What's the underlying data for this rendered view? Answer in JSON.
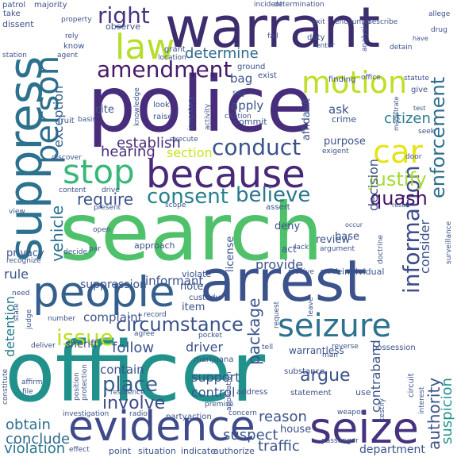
{
  "words": [
    {
      "text": "search",
      "color": "#4fc16b"
    },
    {
      "text": "officer",
      "color": "#21918c"
    },
    {
      "text": "police",
      "color": "#472d7b"
    },
    {
      "text": "warrant",
      "color": "#3e2d6e"
    },
    {
      "text": "arrest",
      "color": "#3b528b"
    },
    {
      "text": "because",
      "color": "#482878"
    },
    {
      "text": "suppress",
      "color": "#2c728e"
    },
    {
      "text": "people",
      "color": "#35608d"
    },
    {
      "text": "evidence",
      "color": "#3f4a8a"
    },
    {
      "text": "seizure",
      "color": "#2c728e"
    },
    {
      "text": "seize",
      "color": "#46327e"
    },
    {
      "text": "person",
      "color": "#2e6f8e"
    },
    {
      "text": "motion",
      "color": "#bddf26"
    },
    {
      "text": "law",
      "color": "#b5de2b"
    },
    {
      "text": "stop",
      "color": "#37b878"
    },
    {
      "text": "car",
      "color": "#e5e419"
    },
    {
      "text": "conduct",
      "color": "#3b528b"
    },
    {
      "text": "amendment",
      "color": "#481a6c"
    },
    {
      "text": "right",
      "color": "#463480"
    },
    {
      "text": "consent",
      "color": "#277f8e"
    },
    {
      "text": "believe",
      "color": "#2a788e"
    },
    {
      "text": "information",
      "color": "#3e4c8a"
    },
    {
      "text": "enforcement",
      "color": "#2e6e8e"
    },
    {
      "text": "justify",
      "color": "#a5db36"
    },
    {
      "text": "quash",
      "color": "#471365"
    },
    {
      "text": "circumstance",
      "color": "#3b528b"
    },
    {
      "text": "issue",
      "color": "#bddf26"
    },
    {
      "text": "place",
      "color": "#35608d"
    },
    {
      "text": "involve",
      "color": "#3e4989"
    },
    {
      "text": "obtain",
      "color": "#2d708e"
    },
    {
      "text": "conclude",
      "color": "#31688e"
    },
    {
      "text": "violation",
      "color": "#2a788e"
    },
    {
      "text": "vehicle",
      "color": "#2c728e"
    },
    {
      "text": "require",
      "color": "#3b528b"
    },
    {
      "text": "determine",
      "color": "#30698e"
    },
    {
      "text": "establish",
      "color": "#472d7b"
    },
    {
      "text": "hearing",
      "color": "#472d7b"
    },
    {
      "text": "section",
      "color": "#cde11d"
    },
    {
      "text": "exception",
      "color": "#34608d"
    },
    {
      "text": "package",
      "color": "#3b528b"
    },
    {
      "text": "authority",
      "color": "#3b528b"
    },
    {
      "text": "contraband",
      "color": "#3b528b"
    },
    {
      "text": "suspicion",
      "color": "#21918c"
    },
    {
      "text": "detention",
      "color": "#287c8e"
    },
    {
      "text": "citizen",
      "color": "#287d8e"
    },
    {
      "text": "consider",
      "color": "#3a548c"
    },
    {
      "text": "decision",
      "color": "#3b528b"
    },
    {
      "text": "argue",
      "color": "#3b528b"
    },
    {
      "text": "reason",
      "color": "#3b528b"
    },
    {
      "text": "suspect",
      "color": "#3b528b"
    },
    {
      "text": "traffic",
      "color": "#3b528b"
    },
    {
      "text": "house",
      "color": "#3b528b"
    },
    {
      "text": "department",
      "color": "#3b528b"
    },
    {
      "text": "provide",
      "color": "#3b528b"
    },
    {
      "text": "informant",
      "color": "#3b528b"
    },
    {
      "text": "suppression",
      "color": "#3b528b"
    },
    {
      "text": "complaint",
      "color": "#3b528b"
    },
    {
      "text": "follow",
      "color": "#3b528b"
    },
    {
      "text": "driver",
      "color": "#3b528b"
    },
    {
      "text": "contain",
      "color": "#3b528b"
    },
    {
      "text": "support",
      "color": "#3b528b"
    },
    {
      "text": "control",
      "color": "#3b528b"
    },
    {
      "text": "rule",
      "color": "#3b528b"
    },
    {
      "text": "privacy",
      "color": "#3b528b"
    },
    {
      "text": "sheriff",
      "color": "#3b528b"
    },
    {
      "text": "item",
      "color": "#3b528b"
    },
    {
      "text": "note",
      "color": "#3b528b"
    },
    {
      "text": "apply",
      "color": "#3b528b"
    },
    {
      "text": "bag",
      "color": "#3b528b"
    },
    {
      "text": "ask",
      "color": "#3b528b"
    },
    {
      "text": "deny",
      "color": "#3b528b"
    },
    {
      "text": "base",
      "color": "#3b528b"
    },
    {
      "text": "review",
      "color": "#3b528b"
    },
    {
      "text": "purpose",
      "color": "#3b528b"
    },
    {
      "text": "affidavit",
      "color": "#3b528b"
    },
    {
      "text": "license",
      "color": "#3b528b"
    },
    {
      "text": "act",
      "color": "#3b528b"
    },
    {
      "text": "observe",
      "color": "#3b528b"
    },
    {
      "text": "cite",
      "color": "#3b528b"
    },
    {
      "text": "commit",
      "color": "#3b528b"
    },
    {
      "text": "crime",
      "color": "#3b528b"
    },
    {
      "text": "exist",
      "color": "#3b528b"
    },
    {
      "text": "finding",
      "color": "#3b528b"
    },
    {
      "text": "ground",
      "color": "#3b528b"
    },
    {
      "text": "say",
      "color": "#3b528b"
    },
    {
      "text": "grant",
      "color": "#3b528b"
    },
    {
      "text": "lack",
      "color": "#3b528b"
    },
    {
      "text": "marijuana",
      "color": "#3b528b"
    },
    {
      "text": "custody",
      "color": "#3b528b"
    },
    {
      "text": "violate",
      "color": "#3b528b"
    },
    {
      "text": "approach",
      "color": "#3b528b"
    },
    {
      "text": "patrol",
      "color": "#3b528b"
    },
    {
      "text": "majority",
      "color": "#3b528b"
    },
    {
      "text": "dissent",
      "color": "#3b528b"
    },
    {
      "text": "take",
      "color": "#3b528b"
    },
    {
      "text": "property",
      "color": "#3b528b"
    },
    {
      "text": "rely",
      "color": "#3b528b"
    },
    {
      "text": "know",
      "color": "#3b528b"
    },
    {
      "text": "agent",
      "color": "#3b528b"
    },
    {
      "text": "station",
      "color": "#3b528b"
    },
    {
      "text": "determination",
      "color": "#3b528b"
    },
    {
      "text": "citation",
      "color": "#3b528b"
    },
    {
      "text": "incident",
      "color": "#3b528b"
    },
    {
      "text": "encounter",
      "color": "#3b528b"
    },
    {
      "text": "describe",
      "color": "#3b528b"
    },
    {
      "text": "allege",
      "color": "#3b528b"
    },
    {
      "text": "drug",
      "color": "#3b528b"
    },
    {
      "text": "have",
      "color": "#3b528b"
    },
    {
      "text": "exit",
      "color": "#3b528b"
    },
    {
      "text": "fail",
      "color": "#3b528b"
    },
    {
      "text": "duty",
      "color": "#3b528b"
    },
    {
      "text": "enter",
      "color": "#3b528b"
    },
    {
      "text": "analysis",
      "color": "#3b528b"
    },
    {
      "text": "detain",
      "color": "#3b528b"
    },
    {
      "text": "statute",
      "color": "#3b528b"
    },
    {
      "text": "give",
      "color": "#3b528b"
    },
    {
      "text": "office",
      "color": "#3b528b"
    },
    {
      "text": "test",
      "color": "#3b528b"
    },
    {
      "text": "magistrate",
      "color": "#3b528b"
    },
    {
      "text": "seek",
      "color": "#3b528b"
    },
    {
      "text": "door",
      "color": "#3b528b"
    },
    {
      "text": "exigent",
      "color": "#3b528b"
    },
    {
      "text": "result",
      "color": "#3b528b"
    },
    {
      "text": "occur",
      "color": "#3b528b"
    },
    {
      "text": "argument",
      "color": "#3b528b"
    },
    {
      "text": "doctrine",
      "color": "#3b528b"
    },
    {
      "text": "individual",
      "color": "#3b528b"
    },
    {
      "text": "article",
      "color": "#3b528b"
    },
    {
      "text": "receive",
      "color": "#3b528b"
    },
    {
      "text": "surveillance",
      "color": "#3b528b"
    },
    {
      "text": "request",
      "color": "#3b528b"
    },
    {
      "text": "leave",
      "color": "#3b528b"
    },
    {
      "text": "reverse",
      "color": "#3b528b"
    },
    {
      "text": "possession",
      "color": "#3b528b"
    },
    {
      "text": "warrantless",
      "color": "#3b528b"
    },
    {
      "text": "man",
      "color": "#3b528b"
    },
    {
      "text": "substance",
      "color": "#3b528b"
    },
    {
      "text": "statement",
      "color": "#3b528b"
    },
    {
      "text": "use",
      "color": "#3b528b"
    },
    {
      "text": "circuit",
      "color": "#3b528b"
    },
    {
      "text": "interest",
      "color": "#3b528b"
    },
    {
      "text": "testify",
      "color": "#3b528b"
    },
    {
      "text": "weapon",
      "color": "#3b528b"
    },
    {
      "text": "address",
      "color": "#3b528b"
    },
    {
      "text": "application",
      "color": "#3b528b"
    },
    {
      "text": "premise",
      "color": "#3b528b"
    },
    {
      "text": "party",
      "color": "#3b528b"
    },
    {
      "text": "action",
      "color": "#3b528b"
    },
    {
      "text": "concern",
      "color": "#3b528b"
    },
    {
      "text": "passenger",
      "color": "#3b528b"
    },
    {
      "text": "tell",
      "color": "#3b528b"
    },
    {
      "text": "pocket",
      "color": "#3b528b"
    },
    {
      "text": "agree",
      "color": "#3b528b"
    },
    {
      "text": "residence",
      "color": "#3b528b"
    },
    {
      "text": "position",
      "color": "#3b528b"
    },
    {
      "text": "protection",
      "color": "#3b528b"
    },
    {
      "text": "investigation",
      "color": "#3b528b"
    },
    {
      "text": "radio",
      "color": "#3b528b"
    },
    {
      "text": "point",
      "color": "#3b528b"
    },
    {
      "text": "situation",
      "color": "#3b528b"
    },
    {
      "text": "indicate",
      "color": "#3b528b"
    },
    {
      "text": "authorize",
      "color": "#3b528b"
    },
    {
      "text": "effect",
      "color": "#3b528b"
    },
    {
      "text": "number",
      "color": "#3b528b"
    },
    {
      "text": "affirm",
      "color": "#3b528b"
    },
    {
      "text": "file",
      "color": "#3b528b"
    },
    {
      "text": "constitute",
      "color": "#3b528b"
    },
    {
      "text": "deliver",
      "color": "#3b528b"
    },
    {
      "text": "judge",
      "color": "#3b528b"
    },
    {
      "text": "need",
      "color": "#3b528b"
    },
    {
      "text": "state",
      "color": "#3b528b"
    },
    {
      "text": "recognize",
      "color": "#3b528b"
    },
    {
      "text": "view",
      "color": "#3b528b"
    },
    {
      "text": "par",
      "color": "#3b528b"
    },
    {
      "text": "decide",
      "color": "#3b528b"
    },
    {
      "text": "open",
      "color": "#3b528b"
    },
    {
      "text": "present",
      "color": "#3b528b"
    },
    {
      "text": "drive",
      "color": "#3b528b"
    },
    {
      "text": "content",
      "color": "#3b528b"
    },
    {
      "text": "scope",
      "color": "#3b528b"
    },
    {
      "text": "assert",
      "color": "#3b528b"
    },
    {
      "text": "discover",
      "color": "#3b528b"
    },
    {
      "text": "fruit",
      "color": "#3b528b"
    },
    {
      "text": "basis",
      "color": "#3b528b"
    },
    {
      "text": "knowledge",
      "color": "#3b528b"
    },
    {
      "text": "raise",
      "color": "#3b528b"
    },
    {
      "text": "look",
      "color": "#3b528b"
    },
    {
      "text": "inventory",
      "color": "#3b528b"
    },
    {
      "text": "activity",
      "color": "#3b528b"
    },
    {
      "text": "execute",
      "color": "#3b528b"
    },
    {
      "text": "location",
      "color": "#3b528b"
    },
    {
      "text": "record",
      "color": "#3b528b"
    }
  ]
}
